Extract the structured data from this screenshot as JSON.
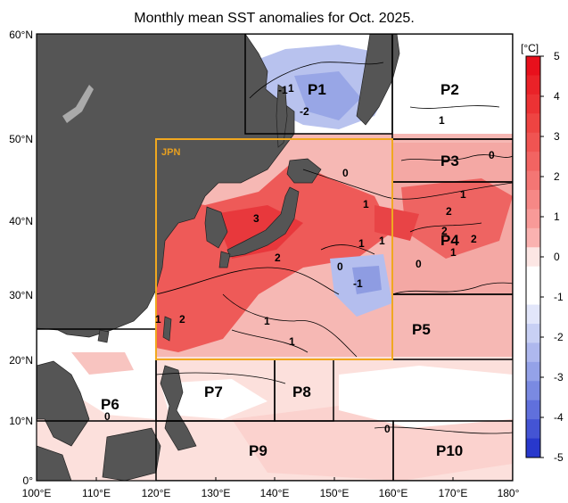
{
  "title": "Monthly mean SST anomalies for Oct. 2025.",
  "map": {
    "lon_range": [
      100,
      180
    ],
    "lat_range": [
      0,
      60
    ],
    "lon_ticks": [
      "100°E",
      "110°E",
      "120°E",
      "130°E",
      "140°E",
      "150°E",
      "160°E",
      "170°E",
      "180°"
    ],
    "lat_ticks": [
      "0°",
      "10°N",
      "20°N",
      "30°N",
      "40°N",
      "50°N",
      "60°N"
    ],
    "colors": {
      "land": "#555555",
      "jpn_box": "#f0a820",
      "strong_warm": "#e8383c",
      "warm": "#f4a4a0",
      "weak_warm": "#fce0dc",
      "cool": "#a8b4ec"
    },
    "jpn_label": "JPN",
    "regions": [
      "P1",
      "P2",
      "P3",
      "P4",
      "P5",
      "P6",
      "P7",
      "P8",
      "P9",
      "P10"
    ],
    "contour_labels": [
      "1",
      "-1",
      "-2",
      "1",
      "0",
      "3",
      "1",
      "2",
      "0",
      "-1",
      "1",
      "1",
      "2",
      "1",
      "1",
      "1",
      "0",
      "1",
      "2",
      "2",
      "2",
      "1",
      "0",
      "0",
      "0"
    ]
  },
  "colorbar": {
    "unit": "[°C]",
    "ticks": [
      "5",
      "4",
      "3",
      "2",
      "1",
      "0",
      "-1",
      "-2",
      "-3",
      "-4",
      "-5"
    ],
    "levels": [
      5,
      4.5,
      4,
      3.5,
      3,
      2.5,
      2,
      1.5,
      1,
      0.5,
      0,
      -0.5,
      -1,
      -1.5,
      -2,
      -2.5,
      -3,
      -3.5,
      -4,
      -4.5
    ],
    "colors": [
      "#e8101c",
      "#ea2228",
      "#ec3234",
      "#ee4442",
      "#f05452",
      "#f26462",
      "#f47674",
      "#f68886",
      "#f89a98",
      "#fab2b0",
      "#fce6e4",
      "#ffffff",
      "#ffffff",
      "#e2e6fa",
      "#c8d0f4",
      "#aeb8ee",
      "#94a2e8",
      "#7a8ae2",
      "#6070dc",
      "#4454d4",
      "#2838cc"
    ]
  }
}
